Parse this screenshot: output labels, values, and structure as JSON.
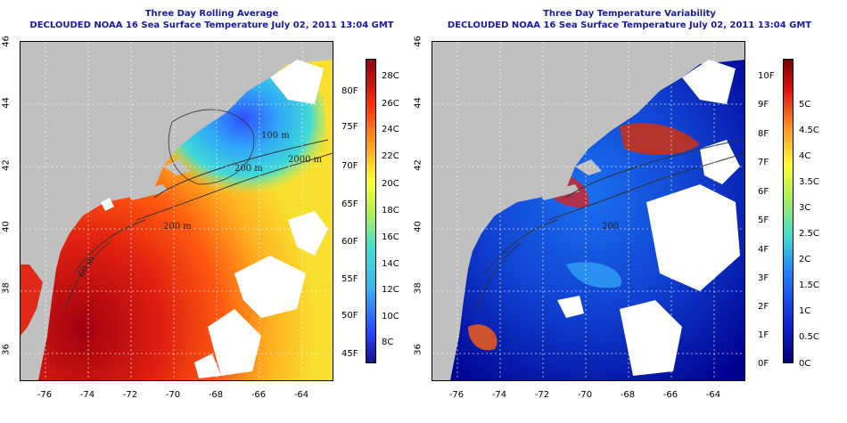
{
  "left": {
    "title1": "Three Day Rolling Average",
    "title2": "DECLOUDED NOAA 16 Sea Surface Temperature July 02, 2011 13:04 GMT",
    "celsius_labels": [
      "28C",
      "26C",
      "24C",
      "22C",
      "20C",
      "18C",
      "16C",
      "14C",
      "12C",
      "10C",
      "8C"
    ],
    "fahrenheit_labels": [
      "80F",
      "75F",
      "70F",
      "65F",
      "60F",
      "55F",
      "50F",
      "45F"
    ],
    "contour_labels": [
      "100 m",
      "200 m",
      "2000 m",
      "200 m",
      "60 m"
    ]
  },
  "right": {
    "title1": "Three Day Temperature Variability",
    "title2": "DECLOUDED NOAA 16 Sea Surface Temperature July 02, 2011 13:04 GMT",
    "fahrenheit_labels": [
      "10F",
      "9F",
      "8F",
      "7F",
      "6F",
      "5F",
      "4F",
      "3F",
      "2F",
      "1F",
      "0F"
    ],
    "celsius_labels": [
      "5C",
      "4.5C",
      "4C",
      "3.5C",
      "3C",
      "2.5C",
      "2C",
      "1.5C",
      "1C",
      "0.5C",
      "0C"
    ],
    "contour_labels": [
      "200"
    ]
  },
  "axes": {
    "y_ticks": [
      "46",
      "44",
      "42",
      "40",
      "38",
      "36"
    ],
    "x_ticks": [
      "-76",
      "-74",
      "-72",
      "-70",
      "-68",
      "-66",
      "-64"
    ]
  },
  "colors": {
    "title": "#1a1a9a",
    "land": "#c0c0c0",
    "cloud": "#ffffff"
  }
}
